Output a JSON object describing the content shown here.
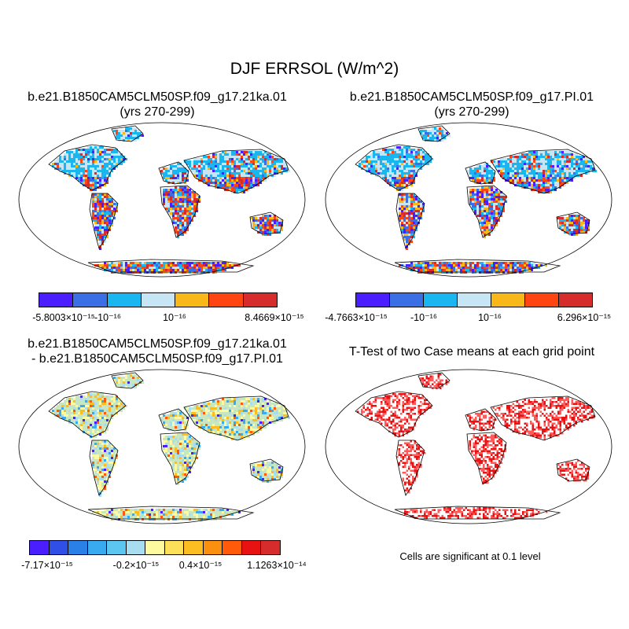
{
  "figure": {
    "title": "DJF ERRSOL (W/m^2)"
  },
  "panels": [
    {
      "title_line1": "b.e21.B1850CAM5CLM50SP.f09_g17.21ka.01",
      "title_line2": "(yrs 270-299)",
      "colorbar": {
        "colors": [
          "#4a1eff",
          "#3a6fe6",
          "#1ab6f0",
          "#c6e6f6",
          "#f8b81a",
          "#ff4512",
          "#d62c2c"
        ],
        "labels": [
          "-5.8003×10⁻¹⁵",
          "-10⁻¹⁶",
          "10⁻¹⁶",
          "8.4669×10⁻¹⁵"
        ]
      }
    },
    {
      "title_line1": "b.e21.B1850CAM5CLM50SP.f09_g17.PI.01",
      "title_line2": "(yrs 270-299)",
      "colorbar": {
        "colors": [
          "#4a1eff",
          "#3a6fe6",
          "#1ab6f0",
          "#c6e6f6",
          "#f8b81a",
          "#ff4512",
          "#d62c2c"
        ],
        "labels": [
          "-4.7663×10⁻¹⁵",
          "-10⁻¹⁶",
          "10⁻¹⁶",
          "6.296×10⁻¹⁵"
        ]
      }
    },
    {
      "title_line1": "b.e21.B1850CAM5CLM50SP.f09_g17.21ka.01",
      "title_line2": "- b.e21.B1850CAM5CLM50SP.f09_g17.PI.01",
      "colorbar": {
        "colors": [
          "#4a1eff",
          "#2f4fe6",
          "#2a80e6",
          "#3aaaf0",
          "#5cc6f0",
          "#a8dcf0",
          "#fdfaa0",
          "#fde05a",
          "#fcbd22",
          "#fb9010",
          "#ff5a0a",
          "#e81212",
          "#d62c2c"
        ],
        "labels": [
          "-7.17×10⁻¹⁵",
          "-0.2×10⁻¹⁵",
          "0.4×10⁻¹⁵",
          "1.1263×10⁻¹⁴"
        ]
      }
    },
    {
      "title_line1": "T-Test of two Case means at each grid point",
      "note": "Cells are significant at 0.1 level"
    }
  ]
}
